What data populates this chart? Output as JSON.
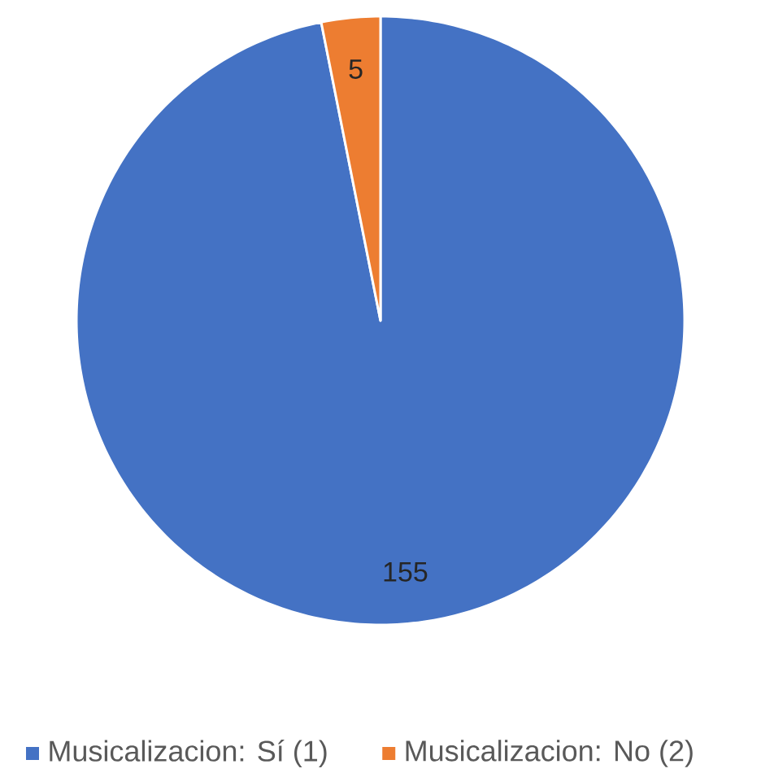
{
  "chart_data": {
    "type": "pie",
    "categories": [
      "Musicalizacion: Sí (1)",
      "Musicalizacion: No (2)"
    ],
    "values": [
      155,
      5
    ],
    "colors": [
      "#4472c4",
      "#ed7d31"
    ],
    "data_labels": true,
    "legend": "bottom"
  }
}
